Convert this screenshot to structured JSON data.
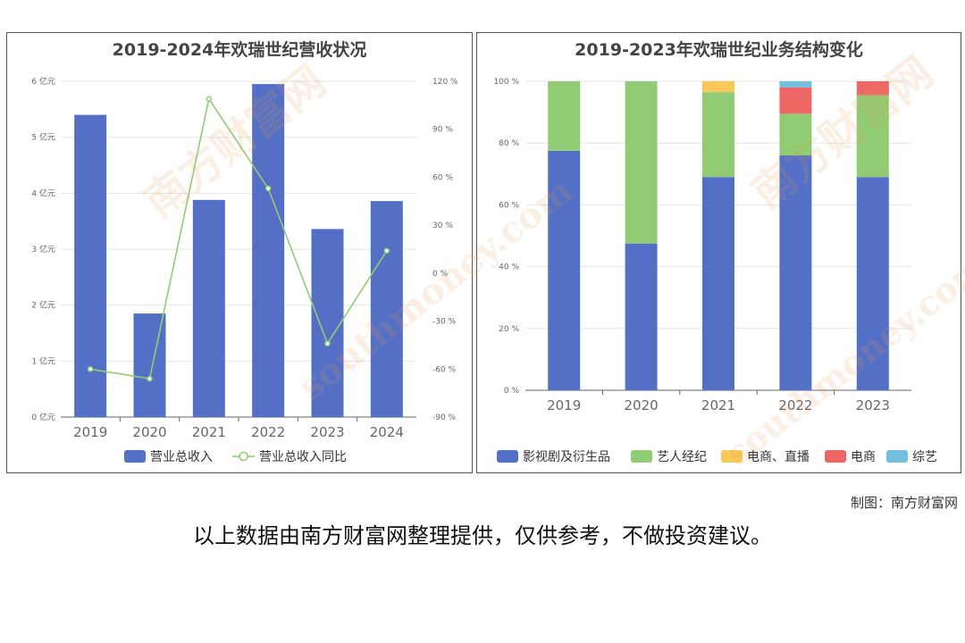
{
  "charts": [
    {
      "type": "bar",
      "title": "2019-2024年欢瑞世纪营收状况",
      "categories": [
        "2019",
        "2020",
        "2021",
        "2022",
        "2023",
        "2024"
      ],
      "series": [
        {
          "name": "营业总收入",
          "type": "bar",
          "values": [
            5.4,
            1.85,
            3.88,
            5.95,
            3.36,
            3.86
          ],
          "color": "#5470c6"
        },
        {
          "name": "营业总收入同比",
          "type": "line",
          "axis": "right",
          "values": [
            -60,
            -66,
            109,
            53,
            -44,
            14
          ],
          "color": "#91cc75"
        }
      ],
      "ylim_left": [
        0,
        6
      ],
      "yticks_left": [
        "0 亿元",
        "1 亿元",
        "2 亿元",
        "3 亿元",
        "4 亿元",
        "5 亿元",
        "6 亿元"
      ],
      "ylim_right": [
        -90,
        120
      ],
      "yticks_right": [
        "-90 %",
        "-60 %",
        "-30 %",
        "0 %",
        "30 %",
        "60 %",
        "90 %",
        "120 %"
      ],
      "legend": "bottom"
    },
    {
      "type": "bar",
      "stacked": true,
      "title": "2019-2023年欢瑞世纪业务结构变化",
      "categories": [
        "2019",
        "2020",
        "2021",
        "2022",
        "2023"
      ],
      "series": [
        {
          "name": "影视剧及衍生品",
          "values": [
            77.5,
            47.5,
            69,
            76,
            69
          ],
          "color": "#5470c6"
        },
        {
          "name": "艺人经纪",
          "values": [
            22.5,
            52.5,
            27.5,
            13.5,
            26.5
          ],
          "color": "#91cc75"
        },
        {
          "name": "电商、直播",
          "values": [
            0,
            0,
            3.5,
            0,
            0
          ],
          "color": "#fac858"
        },
        {
          "name": "电商",
          "values": [
            0,
            0,
            0,
            8.5,
            4.5
          ],
          "color": "#ee6666"
        },
        {
          "name": "综艺",
          "values": [
            0,
            0,
            0,
            2,
            0
          ],
          "color": "#73c0de"
        }
      ],
      "ylim": [
        0,
        100
      ],
      "yticks": [
        "0 %",
        "20 %",
        "40 %",
        "60 %",
        "80 %",
        "100 %"
      ],
      "legend": "bottom"
    }
  ],
  "chart_data": [
    {
      "type": "bar",
      "title": "2019-2024年欢瑞世纪营收状况",
      "categories": [
        "2019",
        "2020",
        "2021",
        "2022",
        "2023",
        "2024"
      ],
      "series": [
        {
          "name": "营业总收入",
          "values": [
            5.4,
            1.85,
            3.88,
            5.95,
            3.36,
            3.86
          ]
        },
        {
          "name": "营业总收入同比",
          "values": [
            -60,
            -66,
            109,
            53,
            -44,
            14
          ]
        }
      ],
      "ylim": [
        0,
        6
      ],
      "y2lim": [
        -90,
        120
      ]
    },
    {
      "type": "bar",
      "title": "2019-2023年欢瑞世纪业务结构变化",
      "categories": [
        "2019",
        "2020",
        "2021",
        "2022",
        "2023"
      ],
      "series": [
        {
          "name": "影视剧及衍生品",
          "values": [
            77.5,
            47.5,
            69,
            76,
            69
          ]
        },
        {
          "name": "艺人经纪",
          "values": [
            22.5,
            52.5,
            27.5,
            13.5,
            26.5
          ]
        },
        {
          "name": "电商、直播",
          "values": [
            0,
            0,
            3.5,
            0,
            0
          ]
        },
        {
          "name": "电商",
          "values": [
            0,
            0,
            0,
            8.5,
            4.5
          ]
        },
        {
          "name": "综艺",
          "values": [
            0,
            0,
            0,
            2,
            0
          ]
        }
      ],
      "ylim": [
        0,
        100
      ]
    }
  ],
  "watermark": "南方财富网 southmoney.com",
  "credit": "制图：南方财富网",
  "disclaimer": "以上数据由南方财富网整理提供，仅供参考，不做投资建议。"
}
